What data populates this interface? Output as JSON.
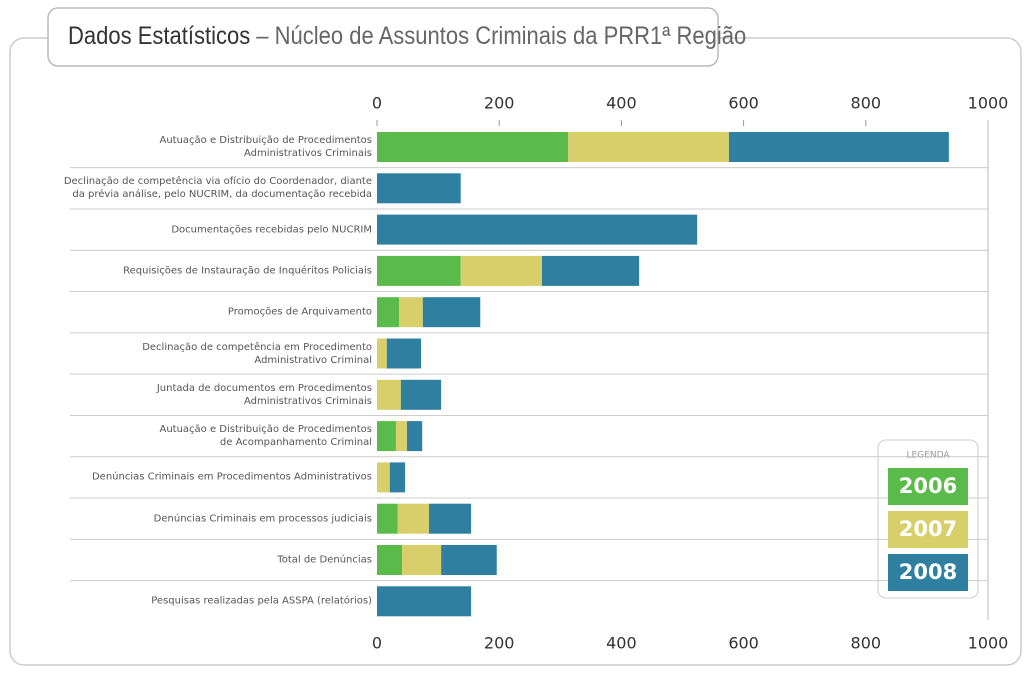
{
  "chart_data": {
    "type": "stacked-bar-horizontal",
    "title": "Dados Estatísticos",
    "subtitle": "– Núcleo de Assuntos Criminais da PRR1ª Região",
    "categories": [
      "Autuação e Distribuição de Procedimentos\nAdministrativos Criminais",
      "Declinação de competência via ofício do Coordenador, diante\nda prévia análise, pelo NUCRIM, da documentação recebida",
      "Documentações recebidas pelo NUCRIM",
      "Requisições de Instauração de Inquéritos Policiais",
      "Promoções de Arquivamento",
      "Declinação de competência em Procedimento\nAdministrativo Criminal",
      "Juntada de documentos em Procedimentos\nAdministrativos Criminais",
      "Autuação e Distribuição de Procedimentos\nde Acompanhamento Criminal",
      "Denúncias Criminais em Procedimentos Administrativos",
      "Denúncias Criminais em processos judiciais",
      "Total de Denúncias",
      "Pesquisas realizadas pela ASSPA (relatórios)"
    ],
    "series": [
      {
        "name": "2006",
        "color": "#5bbb4a",
        "values": [
          313,
          0,
          0,
          137,
          36,
          0,
          0,
          31,
          0,
          34,
          41,
          0
        ]
      },
      {
        "name": "2007",
        "color": "#d9cf6a",
        "values": [
          263,
          0,
          0,
          133,
          39,
          16,
          39,
          18,
          21,
          51,
          64,
          0
        ]
      },
      {
        "name": "2008",
        "color": "#2f7fa0",
        "values": [
          360,
          137,
          524,
          159,
          94,
          56,
          66,
          25,
          25,
          69,
          91,
          154
        ]
      }
    ],
    "xlim": [
      0,
      1000
    ],
    "xticks": [
      0,
      200,
      400,
      600,
      800,
      1000
    ],
    "legend_title": "LEGENDA",
    "legend": "bottom-right"
  }
}
